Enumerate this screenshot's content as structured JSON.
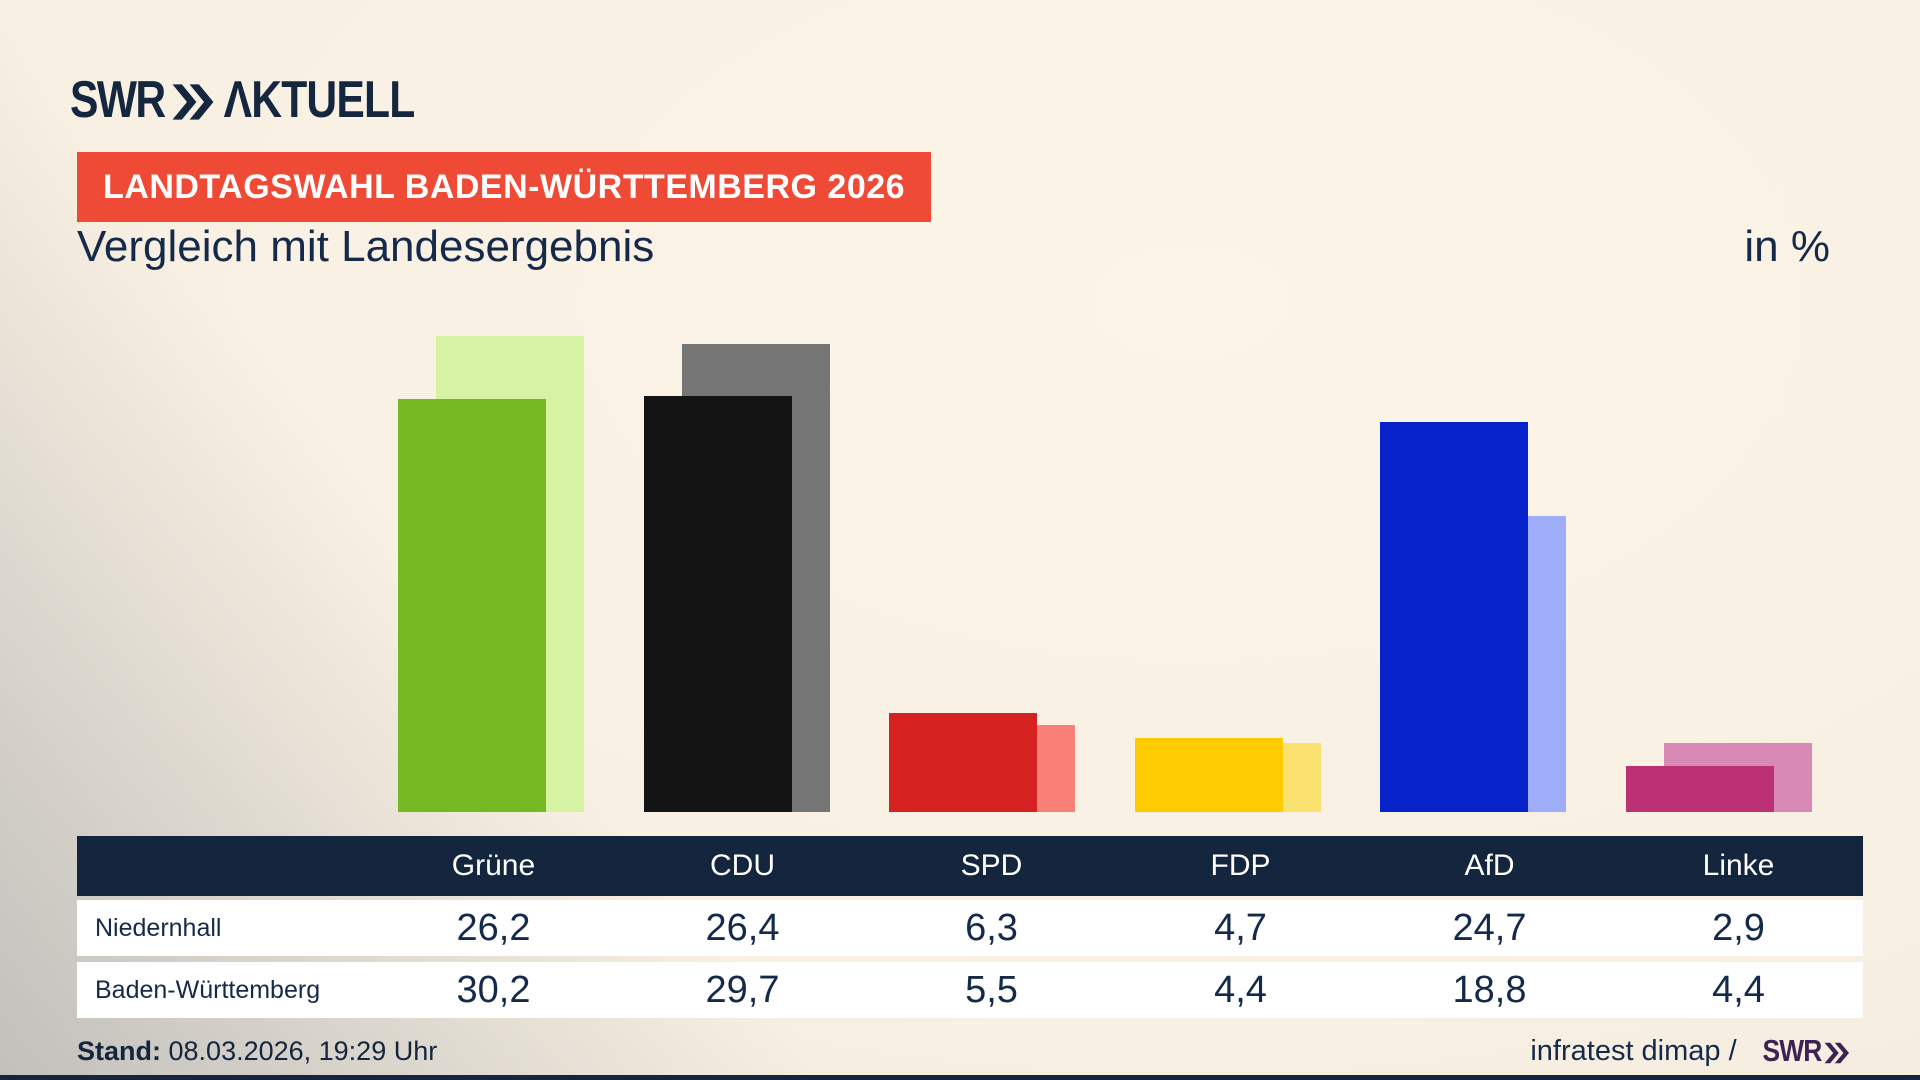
{
  "header": {
    "brand": "SWR",
    "brand_suffix": "ΛKTUELL",
    "banner": "LANDTAGSWAHL BADEN-WÜRTTEMBERG 2026",
    "title": "Vergleich mit Landesergebnis",
    "unit_label": "in %"
  },
  "chart_data": {
    "type": "bar",
    "categories": [
      "Grüne",
      "CDU",
      "SPD",
      "FDP",
      "AfD",
      "Linke"
    ],
    "series": [
      {
        "name": "Niedernhall",
        "values": [
          26.2,
          26.4,
          6.3,
          4.7,
          24.7,
          2.9
        ]
      },
      {
        "name": "Baden-Württemberg",
        "values": [
          30.2,
          29.7,
          5.5,
          4.4,
          18.8,
          4.4
        ]
      }
    ],
    "unit": "%",
    "ylim": [
      0,
      31
    ],
    "grid": false,
    "legend_position": "table-below",
    "front_colors": [
      "#76b822",
      "#141414",
      "#d52221",
      "#fdcb00",
      "#0622c8",
      "#bb3174"
    ],
    "back_colors": [
      "#d6f3a3",
      "#757575",
      "#f98077",
      "#fae170",
      "#9dadf8",
      "#d889b6"
    ],
    "title": "Vergleich mit Landesergebnis"
  },
  "table": {
    "rows": [
      {
        "label": "Niedernhall",
        "values": [
          "26,2",
          "26,4",
          "6,3",
          "4,7",
          "24,7",
          "2,9"
        ]
      },
      {
        "label": "Baden-Württemberg",
        "values": [
          "30,2",
          "29,7",
          "5,5",
          "4,4",
          "18,8",
          "4,4"
        ]
      }
    ]
  },
  "footer": {
    "stand_label": "Stand:",
    "stand_value": "08.03.2026, 19:29 Uhr",
    "source_text": "infratest dimap /",
    "source_brand": "SWR"
  },
  "colors": {
    "navy": "#14253e",
    "banner_red": "#ef4a35",
    "swr_purple": "#3e2253",
    "background_cream": "#f8f0e2",
    "background_gray": "#c2c0bc"
  }
}
